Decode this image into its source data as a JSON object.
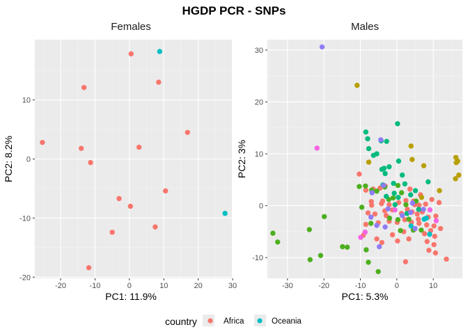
{
  "title": "HGDP PCR - SNPs",
  "colors": {
    "panel_bg": "#ebebeb",
    "grid_major": "#ffffff",
    "tick": "#333333",
    "Africa": "#F8766D",
    "Oceania": "#00BFC4",
    "unlabeled_olive": "#B79F00",
    "unlabeled_green": "#4DAF1F",
    "unlabeled_teal": "#00BA7F",
    "unlabeled_blue": "#8F7CF6",
    "unlabeled_magenta": "#F564E3"
  },
  "legend": {
    "title": "country",
    "items": [
      {
        "label": "Africa",
        "color": "#F8766D"
      },
      {
        "label": "Oceania",
        "color": "#00BFC4"
      }
    ]
  },
  "chart_data": [
    {
      "type": "scatter",
      "title": "Females",
      "xlabel": "PC1: 11.9%",
      "ylabel": "PC2: 8.2%",
      "xlim": [
        -27.5,
        29.8
      ],
      "ylim": [
        -20.2,
        20.2
      ],
      "xticks": [
        -20,
        -10,
        0,
        10,
        20,
        30
      ],
      "yticks": [
        -20,
        -10,
        0,
        10
      ],
      "series": [
        {
          "name": "Africa",
          "color": "#F8766D",
          "points": [
            [
              0.5,
              17.8
            ],
            [
              -13.2,
              12.1
            ],
            [
              8.5,
              13.0
            ],
            [
              16.9,
              4.5
            ],
            [
              -25.3,
              2.8
            ],
            [
              -14.0,
              1.8
            ],
            [
              2.8,
              2.0
            ],
            [
              -11.3,
              -0.6
            ],
            [
              10.5,
              -5.4
            ],
            [
              -3.0,
              -6.7
            ],
            [
              0.3,
              -8.0
            ],
            [
              7.5,
              -11.5
            ],
            [
              -5.0,
              -12.4
            ],
            [
              -11.8,
              -18.4
            ]
          ]
        },
        {
          "name": "Oceania",
          "color": "#00BFC4",
          "points": [
            [
              8.8,
              18.2
            ],
            [
              27.8,
              -9.2
            ]
          ]
        }
      ]
    },
    {
      "type": "scatter",
      "title": "Males",
      "xlabel": "PC1: 5.3%",
      "ylabel": "PC2: 3%",
      "xlim": [
        -35.5,
        18.0
      ],
      "ylim": [
        -14.0,
        32.0
      ],
      "xticks": [
        -30,
        -20,
        -10,
        0,
        10
      ],
      "yticks": [
        -10,
        0,
        10,
        20,
        30
      ],
      "series": [
        {
          "color": "#F8766D",
          "points": [
            [
              -10.3,
              6.1
            ],
            [
              -8.5,
              3.0
            ],
            [
              -6.5,
              3.2
            ],
            [
              -4.6,
              3.4
            ],
            [
              -3.2,
              3.8
            ],
            [
              -7.0,
              0.8
            ],
            [
              -4.2,
              0.4
            ],
            [
              -2.1,
              0.2
            ],
            [
              0.5,
              0.6
            ],
            [
              2.5,
              1.0
            ],
            [
              4.9,
              0.2
            ],
            [
              6.1,
              0.1
            ],
            [
              7.9,
              0.3
            ],
            [
              9.6,
              1.2
            ],
            [
              11.6,
              0.6
            ],
            [
              -7.9,
              -1.4
            ],
            [
              -6.0,
              -1.6
            ],
            [
              -3.3,
              -1.0
            ],
            [
              -1.2,
              -0.8
            ],
            [
              1.3,
              -1.5
            ],
            [
              2.9,
              -0.7
            ],
            [
              4.2,
              -1.2
            ],
            [
              5.6,
              -1.6
            ],
            [
              7.0,
              -1.2
            ],
            [
              8.6,
              -2.2
            ],
            [
              10.7,
              -2.0
            ],
            [
              -8.5,
              -3.6
            ],
            [
              -5.1,
              -3.3
            ],
            [
              -2.1,
              -3.0
            ],
            [
              0.1,
              -3.2
            ],
            [
              2.2,
              -2.7
            ],
            [
              4.0,
              -3.2
            ],
            [
              6.1,
              -3.4
            ],
            [
              8.2,
              -3.7
            ],
            [
              10.2,
              -3.9
            ],
            [
              12.0,
              -4.4
            ],
            [
              -9.2,
              -5.7
            ],
            [
              -5.5,
              -6.4
            ],
            [
              -1.2,
              -5.6
            ],
            [
              1.9,
              -5.0
            ],
            [
              4.8,
              -4.6
            ],
            [
              7.6,
              -5.4
            ],
            [
              10.4,
              -5.9
            ],
            [
              -4.1,
              -7.1
            ],
            [
              0.2,
              -6.8
            ],
            [
              3.3,
              -6.4
            ],
            [
              8.3,
              -6.9
            ],
            [
              10.2,
              -7.5
            ],
            [
              8.8,
              -8.6
            ],
            [
              10.6,
              -9.1
            ],
            [
              2.4,
              -10.8
            ],
            [
              13.6,
              -10.3
            ],
            [
              -3.9,
              0.9
            ],
            [
              6.5,
              2.1
            ],
            [
              3.6,
              3.2
            ],
            [
              -6.9,
              0.1
            ],
            [
              -2.9,
              -1.9
            ],
            [
              5.9,
              -2.6
            ],
            [
              9.3,
              -4.8
            ],
            [
              4.6,
              0.9
            ]
          ]
        },
        {
          "color": "#00BFC4",
          "points": [
            [
              7.5,
              -2.6
            ],
            [
              8.1,
              -2.4
            ],
            [
              3.9,
              -3.9
            ],
            [
              9.0,
              -5.5
            ]
          ]
        },
        {
          "color": "#B79F00",
          "points": [
            [
              -10.9,
              23.2
            ],
            [
              16.2,
              9.3
            ],
            [
              16.7,
              8.6
            ],
            [
              16.3,
              8.3
            ],
            [
              17.0,
              5.9
            ],
            [
              16.1,
              5.2
            ],
            [
              3.9,
              11.5
            ],
            [
              4.2,
              8.9
            ],
            [
              7.4,
              7.7
            ],
            [
              -7.7,
              8.4
            ],
            [
              11.7,
              2.9
            ],
            [
              6.8,
              1.6
            ]
          ]
        },
        {
          "color": "#4DAF1F",
          "points": [
            [
              -34.0,
              -5.3
            ],
            [
              -32.7,
              -7.0
            ],
            [
              -24.0,
              -4.6
            ],
            [
              -23.8,
              -10.4
            ],
            [
              -20.9,
              -9.6
            ],
            [
              -19.9,
              -2.1
            ],
            [
              -14.9,
              -7.9
            ],
            [
              -13.6,
              -8.0
            ],
            [
              -9.6,
              -0.3
            ],
            [
              -8.4,
              -8.5
            ],
            [
              -7.8,
              -10.9
            ],
            [
              -5.1,
              -12.7
            ],
            [
              -7.1,
              -3.4
            ],
            [
              -10.3,
              3.7
            ],
            [
              -8.6,
              3.8
            ],
            [
              -6.9,
              3.0
            ],
            [
              -5.5,
              2.8
            ],
            [
              -3.3,
              3.6
            ],
            [
              -2.2,
              1.2
            ],
            [
              0.3,
              3.9
            ],
            [
              1.3,
              2.5
            ],
            [
              2.5,
              0.2
            ],
            [
              3.3,
              -2.6
            ],
            [
              4.5,
              -4.7
            ],
            [
              6.7,
              -4.7
            ],
            [
              1.0,
              -4.8
            ],
            [
              -2.0,
              -2.4
            ],
            [
              5.3,
              0.9
            ],
            [
              0.3,
              -2.7
            ],
            [
              -1.0,
              1.5
            ]
          ]
        },
        {
          "color": "#00BA7F",
          "points": [
            [
              -8.5,
              14.2
            ],
            [
              -8.0,
              12.9
            ],
            [
              -7.7,
              11.0
            ],
            [
              -6.4,
              9.7
            ],
            [
              -4.3,
              12.5
            ],
            [
              -2.8,
              12.4
            ],
            [
              0.2,
              15.8
            ],
            [
              0.5,
              8.6
            ],
            [
              -3.2,
              6.2
            ],
            [
              -3.8,
              4.0
            ],
            [
              -3.5,
              7.2
            ],
            [
              -4.1,
              7.0
            ],
            [
              -2.1,
              7.5
            ],
            [
              -0.9,
              4.3
            ],
            [
              1.5,
              5.9
            ],
            [
              2.2,
              4.2
            ],
            [
              -0.7,
              2.4
            ],
            [
              -5.5,
              10.0
            ],
            [
              3.8,
              2.1
            ],
            [
              5.1,
              2.9
            ],
            [
              8.6,
              4.6
            ],
            [
              6.0,
              -0.7
            ],
            [
              0.4,
              1.6
            ],
            [
              -2.9,
              1.8
            ],
            [
              2.8,
              -1.5
            ],
            [
              -0.5,
              0.2
            ]
          ]
        },
        {
          "color": "#8F7CF6",
          "points": [
            [
              -20.5,
              30.6
            ],
            [
              -4.4,
              12.7
            ],
            [
              -3.6,
              3.9
            ],
            [
              -6.8,
              2.5
            ],
            [
              3.8,
              -1.3
            ],
            [
              4.3,
              0.5
            ],
            [
              -3.2,
              -4.1
            ],
            [
              1.5,
              -1.9
            ],
            [
              -4.8,
              -7.9
            ],
            [
              -7.1,
              -2.2
            ],
            [
              -5.5,
              -3.8
            ],
            [
              -2.4,
              -0.6
            ],
            [
              5.0,
              -4.4
            ],
            [
              7.3,
              -0.7
            ]
          ]
        },
        {
          "color": "#F564E3",
          "points": [
            [
              -21.9,
              11.1
            ],
            [
              -8.7,
              -5.1
            ],
            [
              -9.9,
              -6.1
            ],
            [
              -0.5,
              -0.8
            ],
            [
              10.8,
              -2.9
            ],
            [
              9.1,
              -0.8
            ]
          ]
        }
      ]
    }
  ]
}
